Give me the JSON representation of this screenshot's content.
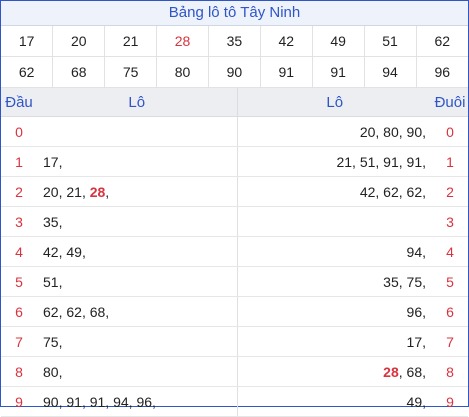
{
  "title": "Bảng lô tô Tây Ninh",
  "numbers_row1": [
    "17",
    "20",
    "21",
    "28",
    "35",
    "42",
    "49",
    "51",
    "62"
  ],
  "numbers_row2": [
    "62",
    "68",
    "75",
    "80",
    "90",
    "91",
    "91",
    "94",
    "96"
  ],
  "highlight_number": "28",
  "header": {
    "dau": "Đầu",
    "lo_left": "Lô",
    "lo_right": "Lô",
    "duoi": "Đuôi"
  },
  "rows": [
    {
      "dau": "0",
      "left": [],
      "right": [
        "20",
        "80",
        "90"
      ],
      "duoi": "0"
    },
    {
      "dau": "1",
      "left": [
        "17"
      ],
      "right": [
        "21",
        "51",
        "91",
        "91"
      ],
      "duoi": "1"
    },
    {
      "dau": "2",
      "left": [
        "20",
        "21",
        "28"
      ],
      "right": [
        "42",
        "62",
        "62"
      ],
      "duoi": "2"
    },
    {
      "dau": "3",
      "left": [
        "35"
      ],
      "right": [],
      "duoi": "3"
    },
    {
      "dau": "4",
      "left": [
        "42",
        "49"
      ],
      "right": [
        "94"
      ],
      "duoi": "4"
    },
    {
      "dau": "5",
      "left": [
        "51"
      ],
      "right": [
        "35",
        "75"
      ],
      "duoi": "5"
    },
    {
      "dau": "6",
      "left": [
        "62",
        "62",
        "68"
      ],
      "right": [
        "96"
      ],
      "duoi": "6"
    },
    {
      "dau": "7",
      "left": [
        "75"
      ],
      "right": [
        "17"
      ],
      "duoi": "7"
    },
    {
      "dau": "8",
      "left": [
        "80"
      ],
      "right": [
        "28",
        "68"
      ],
      "duoi": "8"
    },
    {
      "dau": "9",
      "left": [
        "90",
        "91",
        "91",
        "94",
        "96"
      ],
      "right": [
        "49"
      ],
      "duoi": "9"
    }
  ],
  "colors": {
    "accent": "#2f55c7",
    "highlight": "#d9333f"
  }
}
